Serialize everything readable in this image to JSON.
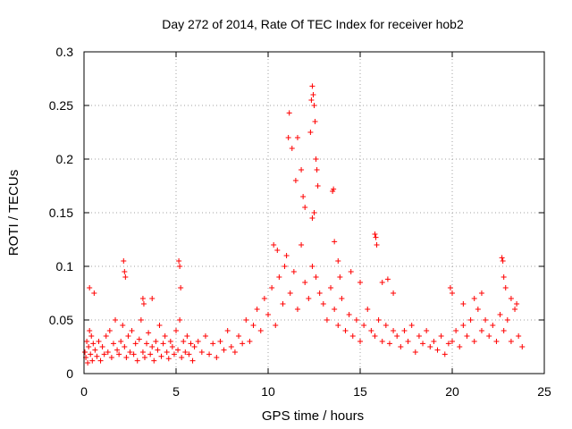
{
  "chart_data": {
    "type": "scatter",
    "title": "Day 272 of 2014, Rate Of TEC Index for receiver hob2",
    "xlabel": "GPS time / hours",
    "ylabel": "ROTI / TECUs",
    "xlim": [
      0,
      25
    ],
    "ylim": [
      0,
      0.3
    ],
    "grid": true,
    "marker": "+",
    "series": [
      {
        "name": "ROTI",
        "color": "#ff0000",
        "x": [
          0.05,
          0.1,
          0.15,
          0.2,
          0.25,
          0.3,
          0.35,
          0.4,
          0.45,
          0.5,
          0.6,
          0.7,
          0.8,
          0.9,
          1.0,
          1.1,
          1.2,
          1.3,
          1.4,
          1.5,
          1.6,
          1.7,
          1.8,
          1.9,
          2.0,
          2.1,
          2.2,
          2.3,
          2.4,
          2.5,
          2.6,
          2.7,
          2.8,
          2.9,
          3.0,
          3.1,
          3.2,
          3.3,
          3.4,
          3.5,
          3.6,
          3.7,
          3.8,
          3.9,
          4.0,
          4.1,
          4.2,
          4.3,
          4.4,
          4.5,
          4.6,
          4.7,
          4.8,
          4.9,
          5.0,
          5.1,
          5.2,
          5.3,
          5.4,
          5.5,
          5.6,
          5.7,
          5.8,
          5.9,
          6.0,
          6.2,
          6.4,
          6.6,
          6.8,
          7.0,
          7.2,
          7.4,
          7.6,
          7.8,
          8.0,
          8.2,
          8.4,
          8.6,
          8.8,
          9.0,
          9.2,
          9.4,
          9.6,
          9.8,
          10.0,
          10.2,
          10.4,
          10.6,
          10.8,
          11.0,
          11.2,
          11.4,
          11.6,
          11.8,
          12.0,
          12.2,
          12.4,
          12.6,
          12.8,
          13.0,
          13.2,
          13.4,
          13.6,
          13.8,
          14.0,
          14.2,
          14.4,
          14.6,
          14.8,
          15.0,
          15.2,
          15.4,
          15.6,
          15.8,
          16.0,
          16.2,
          16.4,
          16.6,
          16.8,
          17.0,
          17.2,
          17.4,
          17.6,
          17.8,
          18.0,
          18.2,
          18.4,
          18.6,
          18.8,
          19.0,
          19.2,
          19.4,
          19.6,
          19.8,
          20.0,
          20.2,
          20.4,
          20.6,
          20.8,
          21.0,
          21.2,
          21.4,
          21.6,
          21.8,
          22.0,
          22.2,
          22.4,
          22.6,
          22.8,
          23.0,
          23.2,
          23.4,
          23.6,
          23.8,
          0.3,
          0.55,
          2.15,
          2.2,
          2.25,
          3.2,
          3.25,
          3.7,
          5.15,
          5.2,
          5.25,
          10.3,
          10.5,
          10.9,
          11.1,
          11.15,
          11.3,
          11.5,
          11.6,
          11.8,
          11.9,
          12.0,
          12.3,
          12.35,
          12.4,
          12.45,
          12.5,
          12.55,
          12.6,
          12.65,
          12.7,
          12.4,
          12.5,
          13.5,
          13.55,
          13.6,
          13.8,
          13.9,
          14.5,
          15.0,
          15.8,
          15.85,
          15.9,
          16.2,
          16.5,
          16.8,
          19.9,
          20.0,
          20.6,
          21.2,
          21.6,
          22.7,
          22.75,
          22.8,
          22.9,
          23.2,
          23.5
        ],
        "y": [
          0.02,
          0.015,
          0.03,
          0.01,
          0.025,
          0.04,
          0.018,
          0.035,
          0.012,
          0.028,
          0.022,
          0.016,
          0.03,
          0.012,
          0.025,
          0.018,
          0.035,
          0.02,
          0.04,
          0.015,
          0.028,
          0.05,
          0.022,
          0.018,
          0.03,
          0.045,
          0.025,
          0.015,
          0.035,
          0.02,
          0.04,
          0.018,
          0.028,
          0.012,
          0.032,
          0.05,
          0.02,
          0.015,
          0.028,
          0.038,
          0.018,
          0.025,
          0.012,
          0.03,
          0.022,
          0.045,
          0.016,
          0.028,
          0.035,
          0.02,
          0.014,
          0.03,
          0.025,
          0.018,
          0.04,
          0.022,
          0.05,
          0.015,
          0.03,
          0.02,
          0.035,
          0.018,
          0.028,
          0.012,
          0.025,
          0.03,
          0.02,
          0.035,
          0.018,
          0.028,
          0.015,
          0.03,
          0.022,
          0.04,
          0.025,
          0.02,
          0.035,
          0.028,
          0.05,
          0.03,
          0.045,
          0.06,
          0.04,
          0.07,
          0.055,
          0.08,
          0.045,
          0.09,
          0.065,
          0.11,
          0.075,
          0.095,
          0.06,
          0.12,
          0.085,
          0.07,
          0.1,
          0.09,
          0.075,
          0.065,
          0.05,
          0.08,
          0.06,
          0.045,
          0.07,
          0.04,
          0.055,
          0.035,
          0.05,
          0.03,
          0.045,
          0.06,
          0.04,
          0.035,
          0.05,
          0.03,
          0.045,
          0.028,
          0.04,
          0.035,
          0.025,
          0.04,
          0.03,
          0.045,
          0.02,
          0.035,
          0.028,
          0.04,
          0.025,
          0.03,
          0.022,
          0.035,
          0.018,
          0.028,
          0.03,
          0.04,
          0.025,
          0.045,
          0.035,
          0.05,
          0.03,
          0.06,
          0.04,
          0.05,
          0.035,
          0.045,
          0.03,
          0.055,
          0.04,
          0.05,
          0.03,
          0.06,
          0.035,
          0.025,
          0.08,
          0.075,
          0.105,
          0.095,
          0.09,
          0.07,
          0.065,
          0.07,
          0.105,
          0.1,
          0.08,
          0.12,
          0.115,
          0.1,
          0.22,
          0.243,
          0.21,
          0.18,
          0.22,
          0.19,
          0.165,
          0.155,
          0.225,
          0.255,
          0.268,
          0.26,
          0.25,
          0.235,
          0.2,
          0.19,
          0.175,
          0.145,
          0.15,
          0.17,
          0.172,
          0.123,
          0.105,
          0.09,
          0.095,
          0.085,
          0.13,
          0.127,
          0.12,
          0.085,
          0.088,
          0.075,
          0.08,
          0.075,
          0.065,
          0.07,
          0.075,
          0.108,
          0.105,
          0.09,
          0.08,
          0.07,
          0.065
        ]
      }
    ]
  }
}
